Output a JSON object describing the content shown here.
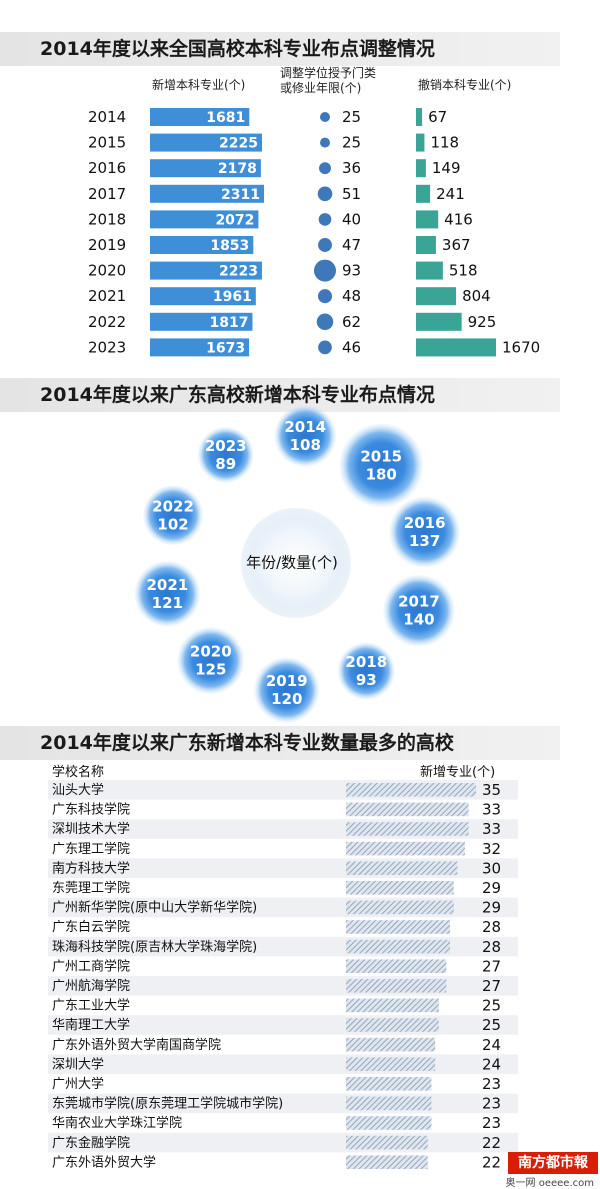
{
  "chart_data": [
    {
      "type": "table",
      "title": "2014年度以来全国高校本科专业布点调整情况",
      "columns": [
        "新增本科专业(个)",
        "调整学位授予门类或修业年限(个)",
        "撤销本科专业(个)"
      ],
      "column_header_lines": [
        [
          "新增本科专业(个)"
        ],
        [
          "调整学位授予门类",
          "或修业年限(个)"
        ],
        [
          "撤销本科专业(个)"
        ]
      ],
      "years": [
        "2014",
        "2015",
        "2016",
        "2017",
        "2018",
        "2019",
        "2020",
        "2021",
        "2022",
        "2023"
      ],
      "series": [
        {
          "name": "新增本科专业(个)",
          "values": [
            1681,
            2225,
            2178,
            2311,
            2072,
            1853,
            2223,
            1961,
            1817,
            1673
          ],
          "color": "#3f8fd8"
        },
        {
          "name": "调整学位授予门类或修业年限(个)",
          "values": [
            25,
            25,
            36,
            51,
            40,
            47,
            93,
            48,
            62,
            46
          ],
          "color": "#3f78b8"
        },
        {
          "name": "撤销本科专业(个)",
          "values": [
            67,
            118,
            149,
            241,
            416,
            367,
            518,
            804,
            925,
            1670
          ],
          "color": "#3aa596"
        }
      ]
    },
    {
      "type": "bubble",
      "title": "2014年度以来广东高校新增本科专业布点情况",
      "center_label": "年份/数量(个)",
      "years": [
        "2014",
        "2015",
        "2016",
        "2017",
        "2018",
        "2019",
        "2020",
        "2021",
        "2022",
        "2023"
      ],
      "values": [
        108,
        180,
        137,
        140,
        93,
        120,
        125,
        121,
        102,
        89
      ],
      "color": "#3f8fd8"
    },
    {
      "type": "bar",
      "title": "2014年度以来广东新增本科专业数量最多的高校",
      "category_header": "学校名称",
      "value_header": "新增专业(个)",
      "categories": [
        "汕头大学",
        "广东科技学院",
        "深圳技术大学",
        "广东理工学院",
        "南方科技大学",
        "东莞理工学院",
        "广州新华学院(原中山大学新华学院)",
        "广东白云学院",
        "珠海科技学院(原吉林大学珠海学院)",
        "广州工商学院",
        "广州航海学院",
        "广东工业大学",
        "华南理工大学",
        "广东外语外贸大学南国商学院",
        "深圳大学",
        "广州大学",
        "东莞城市学院(原东莞理工学院城市学院)",
        "华南农业大学珠江学院",
        "广东金融学院",
        "广东外语外贸大学"
      ],
      "values": [
        35,
        33,
        33,
        32,
        30,
        29,
        29,
        28,
        28,
        27,
        27,
        25,
        25,
        24,
        24,
        23,
        23,
        23,
        22,
        22
      ]
    }
  ],
  "watermark": {
    "main": "南方都市報",
    "sub": "奥一网 oeeee.com"
  }
}
